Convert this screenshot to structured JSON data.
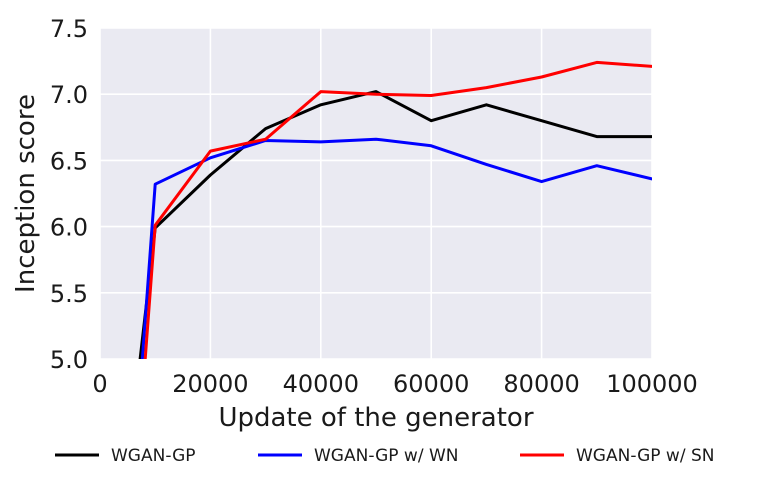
{
  "chart_data": {
    "type": "line",
    "xlabel": "Update of the generator",
    "ylabel": "Inception score",
    "xlim": [
      0,
      100000
    ],
    "ylim": [
      5.0,
      7.5
    ],
    "grid": true,
    "legend_position": "bottom",
    "x_ticks": [
      "0",
      "20000",
      "40000",
      "60000",
      "80000",
      "100000"
    ],
    "y_ticks": [
      "5.0",
      "5.5",
      "6.0",
      "6.5",
      "7.0",
      "7.5"
    ],
    "background": "#eaeaf2",
    "series": [
      {
        "name": "WGAN-GP",
        "color": "#000000",
        "x": [
          7000,
          10000,
          20000,
          30000,
          40000,
          50000,
          60000,
          70000,
          80000,
          90000,
          100000
        ],
        "y": [
          4.9,
          5.99,
          6.39,
          6.74,
          6.92,
          7.02,
          6.8,
          6.92,
          6.8,
          6.68,
          6.68
        ]
      },
      {
        "name": "WGAN-GP w/ WN",
        "color": "#0000ff",
        "x": [
          7500,
          10000,
          20000,
          30000,
          40000,
          50000,
          60000,
          70000,
          80000,
          90000,
          100000
        ],
        "y": [
          4.9,
          6.32,
          6.52,
          6.65,
          6.64,
          6.66,
          6.61,
          6.47,
          6.34,
          6.46,
          6.36
        ]
      },
      {
        "name": "WGAN-GP w/ SN",
        "color": "#ff0000",
        "x": [
          8000,
          10000,
          20000,
          30000,
          40000,
          50000,
          60000,
          70000,
          80000,
          90000,
          100000
        ],
        "y": [
          4.9,
          6.01,
          6.57,
          6.66,
          7.02,
          7.0,
          6.99,
          7.05,
          7.13,
          7.24,
          7.21
        ]
      }
    ]
  }
}
